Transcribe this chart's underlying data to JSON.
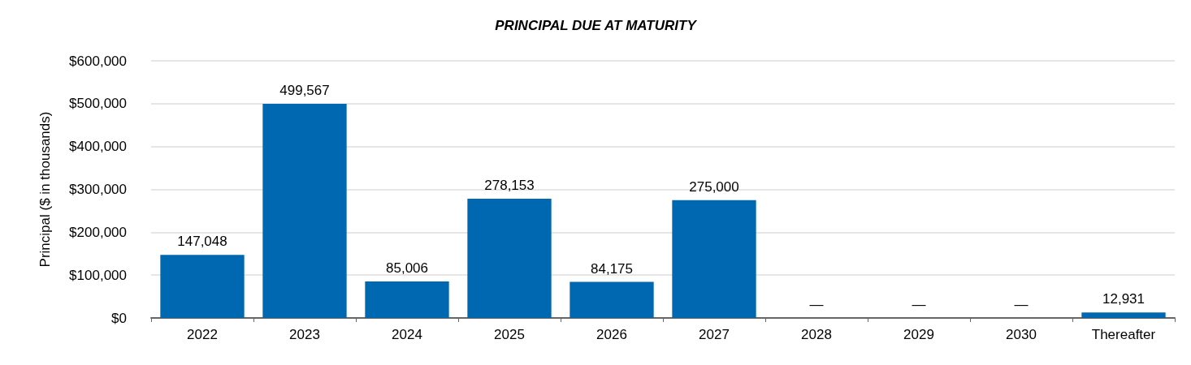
{
  "chart_data": {
    "type": "bar",
    "title": "PRINCIPAL DUE AT MATURITY",
    "ylabel": "Principal ($ in thousands)",
    "categories": [
      "2022",
      "2023",
      "2024",
      "2025",
      "2026",
      "2027",
      "2028",
      "2029",
      "2030",
      "Thereafter"
    ],
    "values": [
      147048,
      499567,
      85006,
      278153,
      84175,
      275000,
      0,
      0,
      0,
      12931
    ],
    "value_labels": [
      "147,048",
      "499,567",
      "85,006",
      "278,153",
      "84,175",
      "275,000",
      "—",
      "—",
      "—",
      "12,931"
    ],
    "color": "#0067b1",
    "ylim": [
      0,
      600000
    ],
    "yticks": [
      {
        "value": 0,
        "label": "$0"
      },
      {
        "value": 100000,
        "label": "$100,000"
      },
      {
        "value": 200000,
        "label": "$200,000"
      },
      {
        "value": 300000,
        "label": "$300,000"
      },
      {
        "value": 400000,
        "label": "$400,000"
      },
      {
        "value": 500000,
        "label": "$500,000"
      },
      {
        "value": 600000,
        "label": "$600,000"
      }
    ],
    "grid": "y"
  }
}
